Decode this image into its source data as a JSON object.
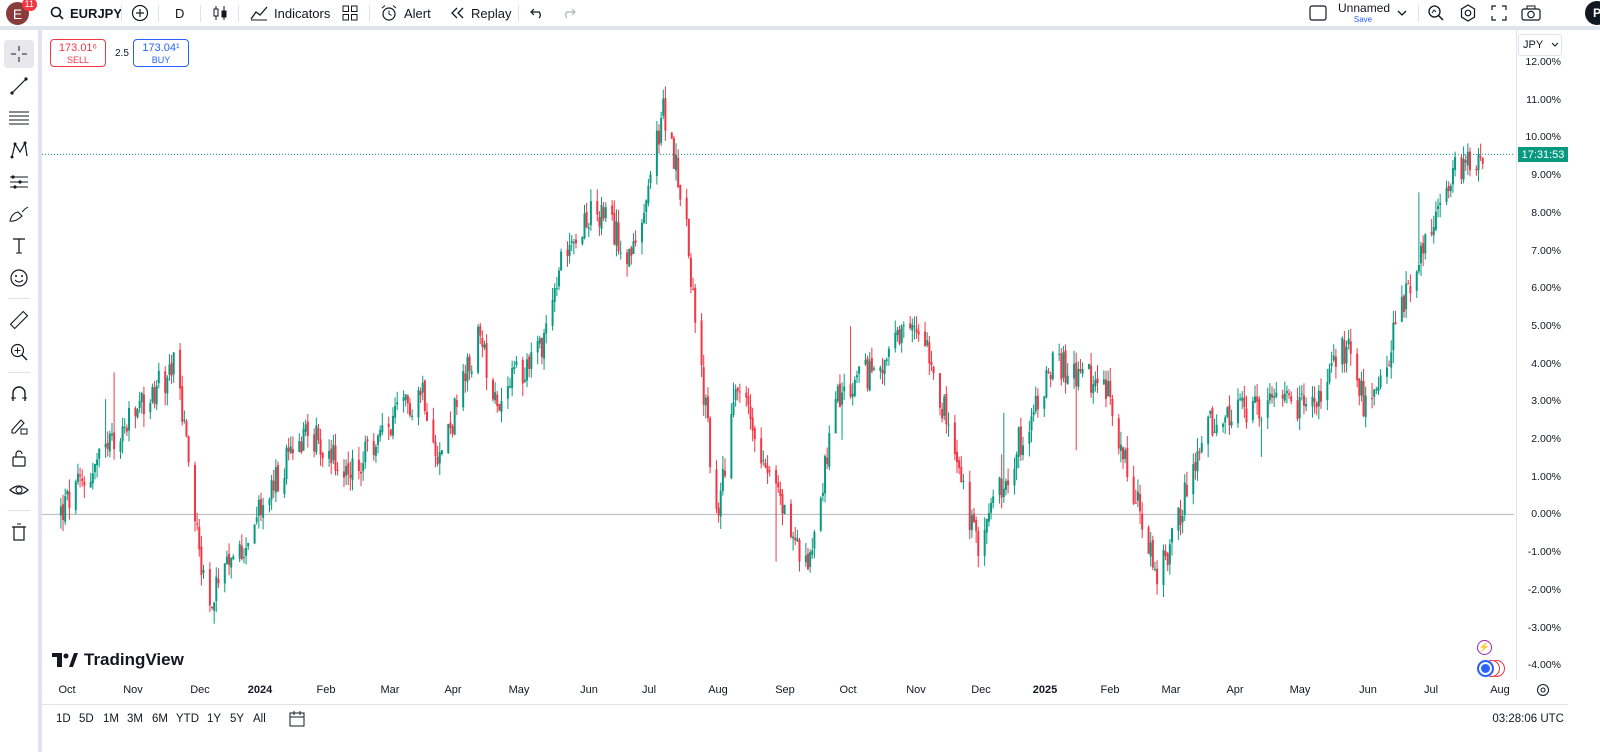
{
  "header": {
    "avatar_letter": "E",
    "notification_count": "11",
    "symbol": "EURJPY",
    "interval": "D",
    "indicators_label": "Indicators",
    "alert_label": "Alert",
    "replay_label": "Replay",
    "layout_name": "Unnamed",
    "save_label": "Save",
    "profile_letter": "P"
  },
  "trade": {
    "sell_price": "173.01⁶",
    "sell_label": "SELL",
    "spread": "2.5",
    "buy_price": "173.04¹",
    "buy_label": "BUY"
  },
  "price_scale": {
    "currency": "JPY",
    "last_time_tag": "17:31:53",
    "labels": [
      "12.00%",
      "11.00%",
      "10.00%",
      "9.00%",
      "8.00%",
      "7.00%",
      "6.00%",
      "5.00%",
      "4.00%",
      "3.00%",
      "2.00%",
      "1.00%",
      "0.00%",
      "-1.00%",
      "-2.00%",
      "-3.00%",
      "-4.00%"
    ]
  },
  "time_axis": {
    "labels": [
      {
        "text": "Oct",
        "year": false
      },
      {
        "text": "Nov",
        "year": false
      },
      {
        "text": "Dec",
        "year": false
      },
      {
        "text": "2024",
        "year": true
      },
      {
        "text": "Feb",
        "year": false
      },
      {
        "text": "Mar",
        "year": false
      },
      {
        "text": "Apr",
        "year": false
      },
      {
        "text": "May",
        "year": false
      },
      {
        "text": "Jun",
        "year": false
      },
      {
        "text": "Jul",
        "year": false
      },
      {
        "text": "Aug",
        "year": false
      },
      {
        "text": "Sep",
        "year": false
      },
      {
        "text": "Oct",
        "year": false
      },
      {
        "text": "Nov",
        "year": false
      },
      {
        "text": "Dec",
        "year": false
      },
      {
        "text": "2025",
        "year": true
      },
      {
        "text": "Feb",
        "year": false
      },
      {
        "text": "Mar",
        "year": false
      },
      {
        "text": "Apr",
        "year": false
      },
      {
        "text": "May",
        "year": false
      },
      {
        "text": "Jun",
        "year": false
      },
      {
        "text": "Jul",
        "year": false
      },
      {
        "text": "Aug",
        "year": false
      }
    ]
  },
  "bottom": {
    "ranges": [
      "1D",
      "5D",
      "1M",
      "3M",
      "6M",
      "YTD",
      "1Y",
      "5Y",
      "All"
    ],
    "clock": "03:28:06 UTC"
  },
  "branding": {
    "logo_text": "TradingView"
  },
  "colors": {
    "up": "#089981",
    "down": "#f23645",
    "accent": "#2962ff"
  },
  "chart_data": {
    "type": "candlestick",
    "scale": "percent",
    "ylim": [
      -4.3,
      12.3
    ],
    "x_start": "Oct 2023",
    "x_end": "Aug 2025",
    "key_points": [
      {
        "date": "2023-10-01",
        "value": 0.0
      },
      {
        "date": "2023-11-25",
        "value": 4.0
      },
      {
        "date": "2023-12-10",
        "value": -2.5
      },
      {
        "date": "2024-01-25",
        "value": 2.3
      },
      {
        "date": "2024-02-15",
        "value": 1.0
      },
      {
        "date": "2024-03-20",
        "value": 3.4
      },
      {
        "date": "2024-03-28",
        "value": 1.5
      },
      {
        "date": "2024-04-15",
        "value": 4.6
      },
      {
        "date": "2024-04-25",
        "value": 3.0
      },
      {
        "date": "2024-05-15",
        "value": 4.6
      },
      {
        "date": "2024-05-28",
        "value": 7.5
      },
      {
        "date": "2024-06-10",
        "value": 8.0
      },
      {
        "date": "2024-06-28",
        "value": 6.8
      },
      {
        "date": "2024-07-11",
        "value": 10.7
      },
      {
        "date": "2024-07-20",
        "value": 8.5
      },
      {
        "date": "2024-08-05",
        "value": 0.0
      },
      {
        "date": "2024-08-15",
        "value": 3.5
      },
      {
        "date": "2024-09-16",
        "value": -1.5
      },
      {
        "date": "2024-10-01",
        "value": 3.0
      },
      {
        "date": "2024-11-10",
        "value": 5.1
      },
      {
        "date": "2024-12-05",
        "value": -0.8
      },
      {
        "date": "2025-01-10",
        "value": 4.0
      },
      {
        "date": "2025-02-05",
        "value": 3.3
      },
      {
        "date": "2025-02-28",
        "value": -1.8
      },
      {
        "date": "2025-03-25",
        "value": 2.5
      },
      {
        "date": "2025-05-15",
        "value": 3.0
      },
      {
        "date": "2025-05-28",
        "value": 4.5
      },
      {
        "date": "2025-06-08",
        "value": 2.5
      },
      {
        "date": "2025-06-28",
        "value": 6.5
      },
      {
        "date": "2025-07-20",
        "value": 9.3
      },
      {
        "date": "2025-07-31",
        "value": 9.6
      }
    ],
    "last_value": 9.55
  }
}
